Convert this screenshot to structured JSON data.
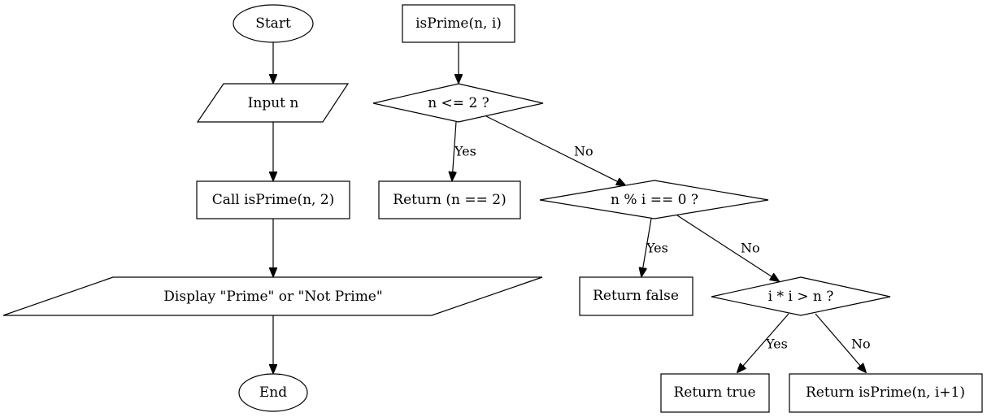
{
  "colors": {
    "stroke": "#000000",
    "fill": "#ffffff",
    "text": "#000000"
  },
  "nodes": {
    "start": "Start",
    "input": "Input n",
    "call": "Call isPrime(n, 2)",
    "display": "Display \"Prime\" or \"Not Prime\"",
    "end": "End",
    "func": "isPrime(n, i)",
    "cond1": "n <= 2 ?",
    "ret1": "Return (n == 2)",
    "cond2": "n % i == 0 ?",
    "ret_false": "Return false",
    "cond3": "i * i > n ?",
    "ret_true": "Return true",
    "ret_rec": "Return isPrime(n, i+1)"
  },
  "edges": {
    "cond1_yes": "Yes",
    "cond1_no": "No",
    "cond2_yes": "Yes",
    "cond2_no": "No",
    "cond3_yes": "Yes",
    "cond3_no": "No"
  }
}
